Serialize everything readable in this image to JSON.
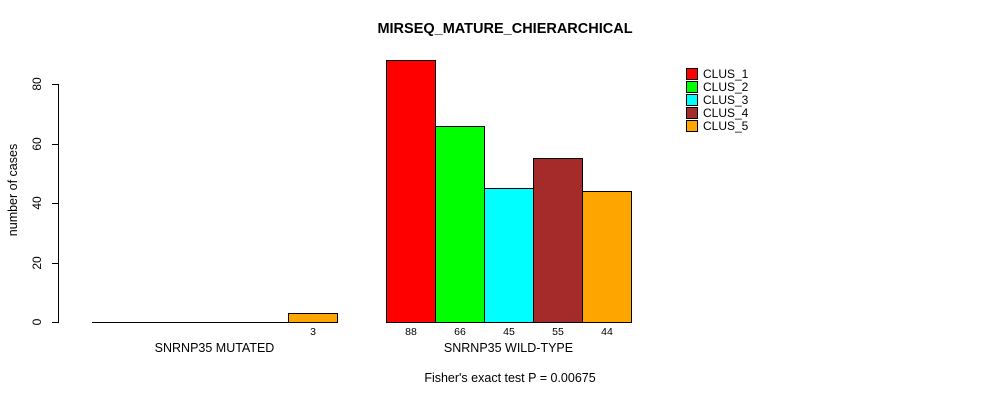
{
  "title": "MIRSEQ_MATURE_CHIERARCHICAL",
  "ylabel": "number of cases",
  "caption": "Fisher's exact test P = 0.00675",
  "chart_data": {
    "type": "bar",
    "title": "MIRSEQ_MATURE_CHIERARCHICAL",
    "xlabel": "",
    "ylabel": "number of cases",
    "ylim": [
      0,
      88
    ],
    "yticks": [
      0,
      20,
      40,
      60,
      80
    ],
    "grid": false,
    "legend_position": "top-right",
    "categories": [
      "SNRNP35 MUTATED",
      "SNRNP35 WILD-TYPE"
    ],
    "series": [
      {
        "name": "CLUS_1",
        "color": "#FF0000",
        "values": [
          0,
          88
        ]
      },
      {
        "name": "CLUS_2",
        "color": "#00FF00",
        "values": [
          0,
          66
        ]
      },
      {
        "name": "CLUS_3",
        "color": "#00FFFF",
        "values": [
          0,
          45
        ]
      },
      {
        "name": "CLUS_4",
        "color": "#A52A2A",
        "values": [
          0,
          55
        ]
      },
      {
        "name": "CLUS_5",
        "color": "#FFA500",
        "values": [
          3,
          44
        ]
      }
    ],
    "bar_value_labels": [
      [
        "",
        "",
        "",
        "",
        "3"
      ],
      [
        "88",
        "66",
        "45",
        "55",
        "44"
      ]
    ],
    "annotation": "Fisher's exact test P = 0.00675"
  }
}
